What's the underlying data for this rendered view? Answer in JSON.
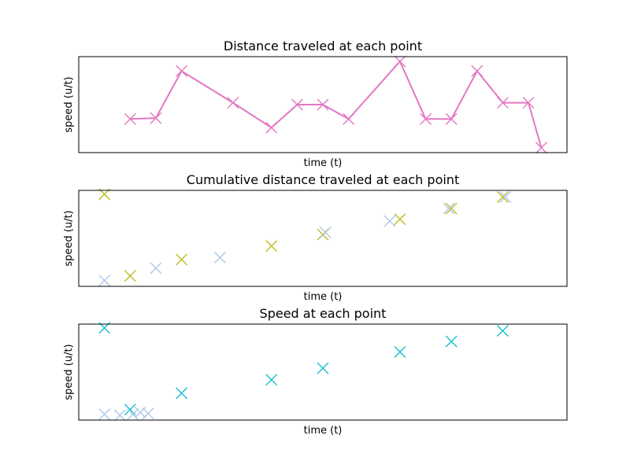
{
  "chart_data": [
    {
      "type": "line",
      "title": "Distance traveled at each point",
      "xlabel": "time (t)",
      "ylabel": "speed (u/t)",
      "xlim": [
        0,
        19
      ],
      "ylim": [
        0,
        10
      ],
      "grid": false,
      "xticks_visible": false,
      "yticks_visible": false,
      "series": [
        {
          "color": "#e377c2",
          "marker": "x",
          "x": [
            2,
            3,
            4,
            6,
            7.5,
            8.5,
            9.5,
            10.5,
            12.5,
            13.5,
            14.5,
            15.5,
            16.5,
            17.5,
            18
          ],
          "y": [
            3.5,
            3.6,
            8.5,
            5.2,
            2.6,
            5.0,
            5.0,
            3.5,
            9.5,
            3.5,
            3.5,
            8.5,
            5.2,
            5.2,
            0.5
          ]
        }
      ]
    },
    {
      "type": "scatter",
      "title": "Cumulative distance traveled at each point",
      "xlabel": "time (t)",
      "ylabel": "speed (u/t)",
      "xlim": [
        0,
        19
      ],
      "ylim": [
        0,
        10
      ],
      "grid": false,
      "xticks_visible": false,
      "yticks_visible": false,
      "series": [
        {
          "color": "#bcbd22",
          "marker": "x",
          "x": [
            1,
            2,
            4,
            7.5,
            9.5,
            12.5,
            14.5,
            16.5
          ],
          "y": [
            9.6,
            1.1,
            2.8,
            4.2,
            5.4,
            7.0,
            8.1,
            9.3
          ]
        },
        {
          "color": "#aec7e8",
          "marker": "x",
          "x": [
            1,
            3,
            5.5,
            9.6,
            12.1,
            14.4,
            16.6
          ],
          "y": [
            0.6,
            1.9,
            3.0,
            5.6,
            6.8,
            8.1,
            9.3
          ]
        }
      ]
    },
    {
      "type": "scatter",
      "title": "Speed at each point",
      "xlabel": "time (t)",
      "ylabel": "speed (u/t)",
      "xlim": [
        0,
        19
      ],
      "ylim": [
        0,
        10
      ],
      "grid": false,
      "xticks_visible": false,
      "yticks_visible": false,
      "series": [
        {
          "color": "#17becf",
          "marker": "x",
          "x": [
            1,
            2,
            4,
            7.5,
            9.5,
            12.5,
            14.5,
            16.5
          ],
          "y": [
            9.6,
            1.1,
            2.8,
            4.2,
            5.4,
            7.1,
            8.2,
            9.3
          ]
        },
        {
          "color": "#aec7e8",
          "marker": "x",
          "x": [
            1,
            1.6,
            2.1,
            2.4,
            2.7
          ],
          "y": [
            0.6,
            0.5,
            0.6,
            0.8,
            0.7
          ]
        }
      ]
    }
  ]
}
